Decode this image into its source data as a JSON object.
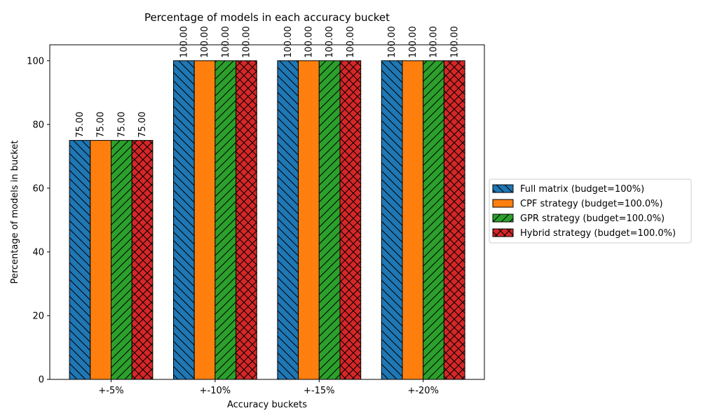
{
  "chart_data": {
    "type": "bar",
    "title": "Percentage of models in each accuracy bucket",
    "xlabel": "Accuracy buckets",
    "ylabel": "Percentage of models in bucket",
    "categories": [
      "+-5%",
      "+-10%",
      "+-15%",
      "+-20%"
    ],
    "ylim": [
      0,
      105
    ],
    "yticks": [
      0,
      20,
      40,
      60,
      80,
      100
    ],
    "grid": false,
    "legend_position": "outside right",
    "series": [
      {
        "name": "Full matrix (budget=100%)",
        "values": [
          75,
          100,
          100,
          100
        ],
        "labels": [
          "75.00",
          "100.00",
          "100.00",
          "100.00"
        ],
        "color": "#1f77b4",
        "hatch": "back-diagonal"
      },
      {
        "name": "CPF strategy (budget=100.0%)",
        "values": [
          75,
          100,
          100,
          100
        ],
        "labels": [
          "75.00",
          "100.00",
          "100.00",
          "100.00"
        ],
        "color": "#ff7f0e",
        "hatch": "none"
      },
      {
        "name": "GPR strategy (budget=100.0%)",
        "values": [
          75,
          100,
          100,
          100
        ],
        "labels": [
          "75.00",
          "100.00",
          "100.00",
          "100.00"
        ],
        "color": "#2ca02c",
        "hatch": "forward-diagonal"
      },
      {
        "name": "Hybrid strategy (budget=100.0%)",
        "values": [
          75,
          100,
          100,
          100
        ],
        "labels": [
          "75.00",
          "100.00",
          "100.00",
          "100.00"
        ],
        "color": "#d62728",
        "hatch": "cross"
      }
    ]
  }
}
